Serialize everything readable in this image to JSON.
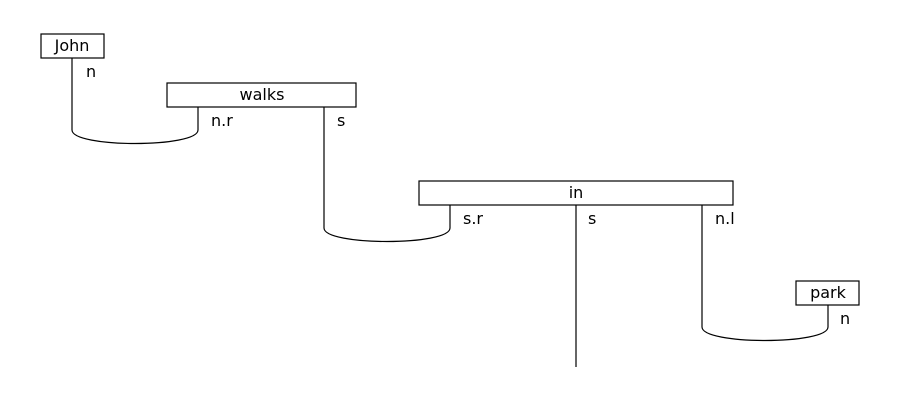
{
  "diagram": {
    "words": {
      "john": "John",
      "walks": "walks",
      "in": "in",
      "park": "park"
    },
    "types": {
      "john_out": "n",
      "walks_nr": "n.r",
      "walks_s": "s",
      "in_sr": "s.r",
      "in_s": "s",
      "in_nl": "n.l",
      "park_out": "n"
    }
  }
}
